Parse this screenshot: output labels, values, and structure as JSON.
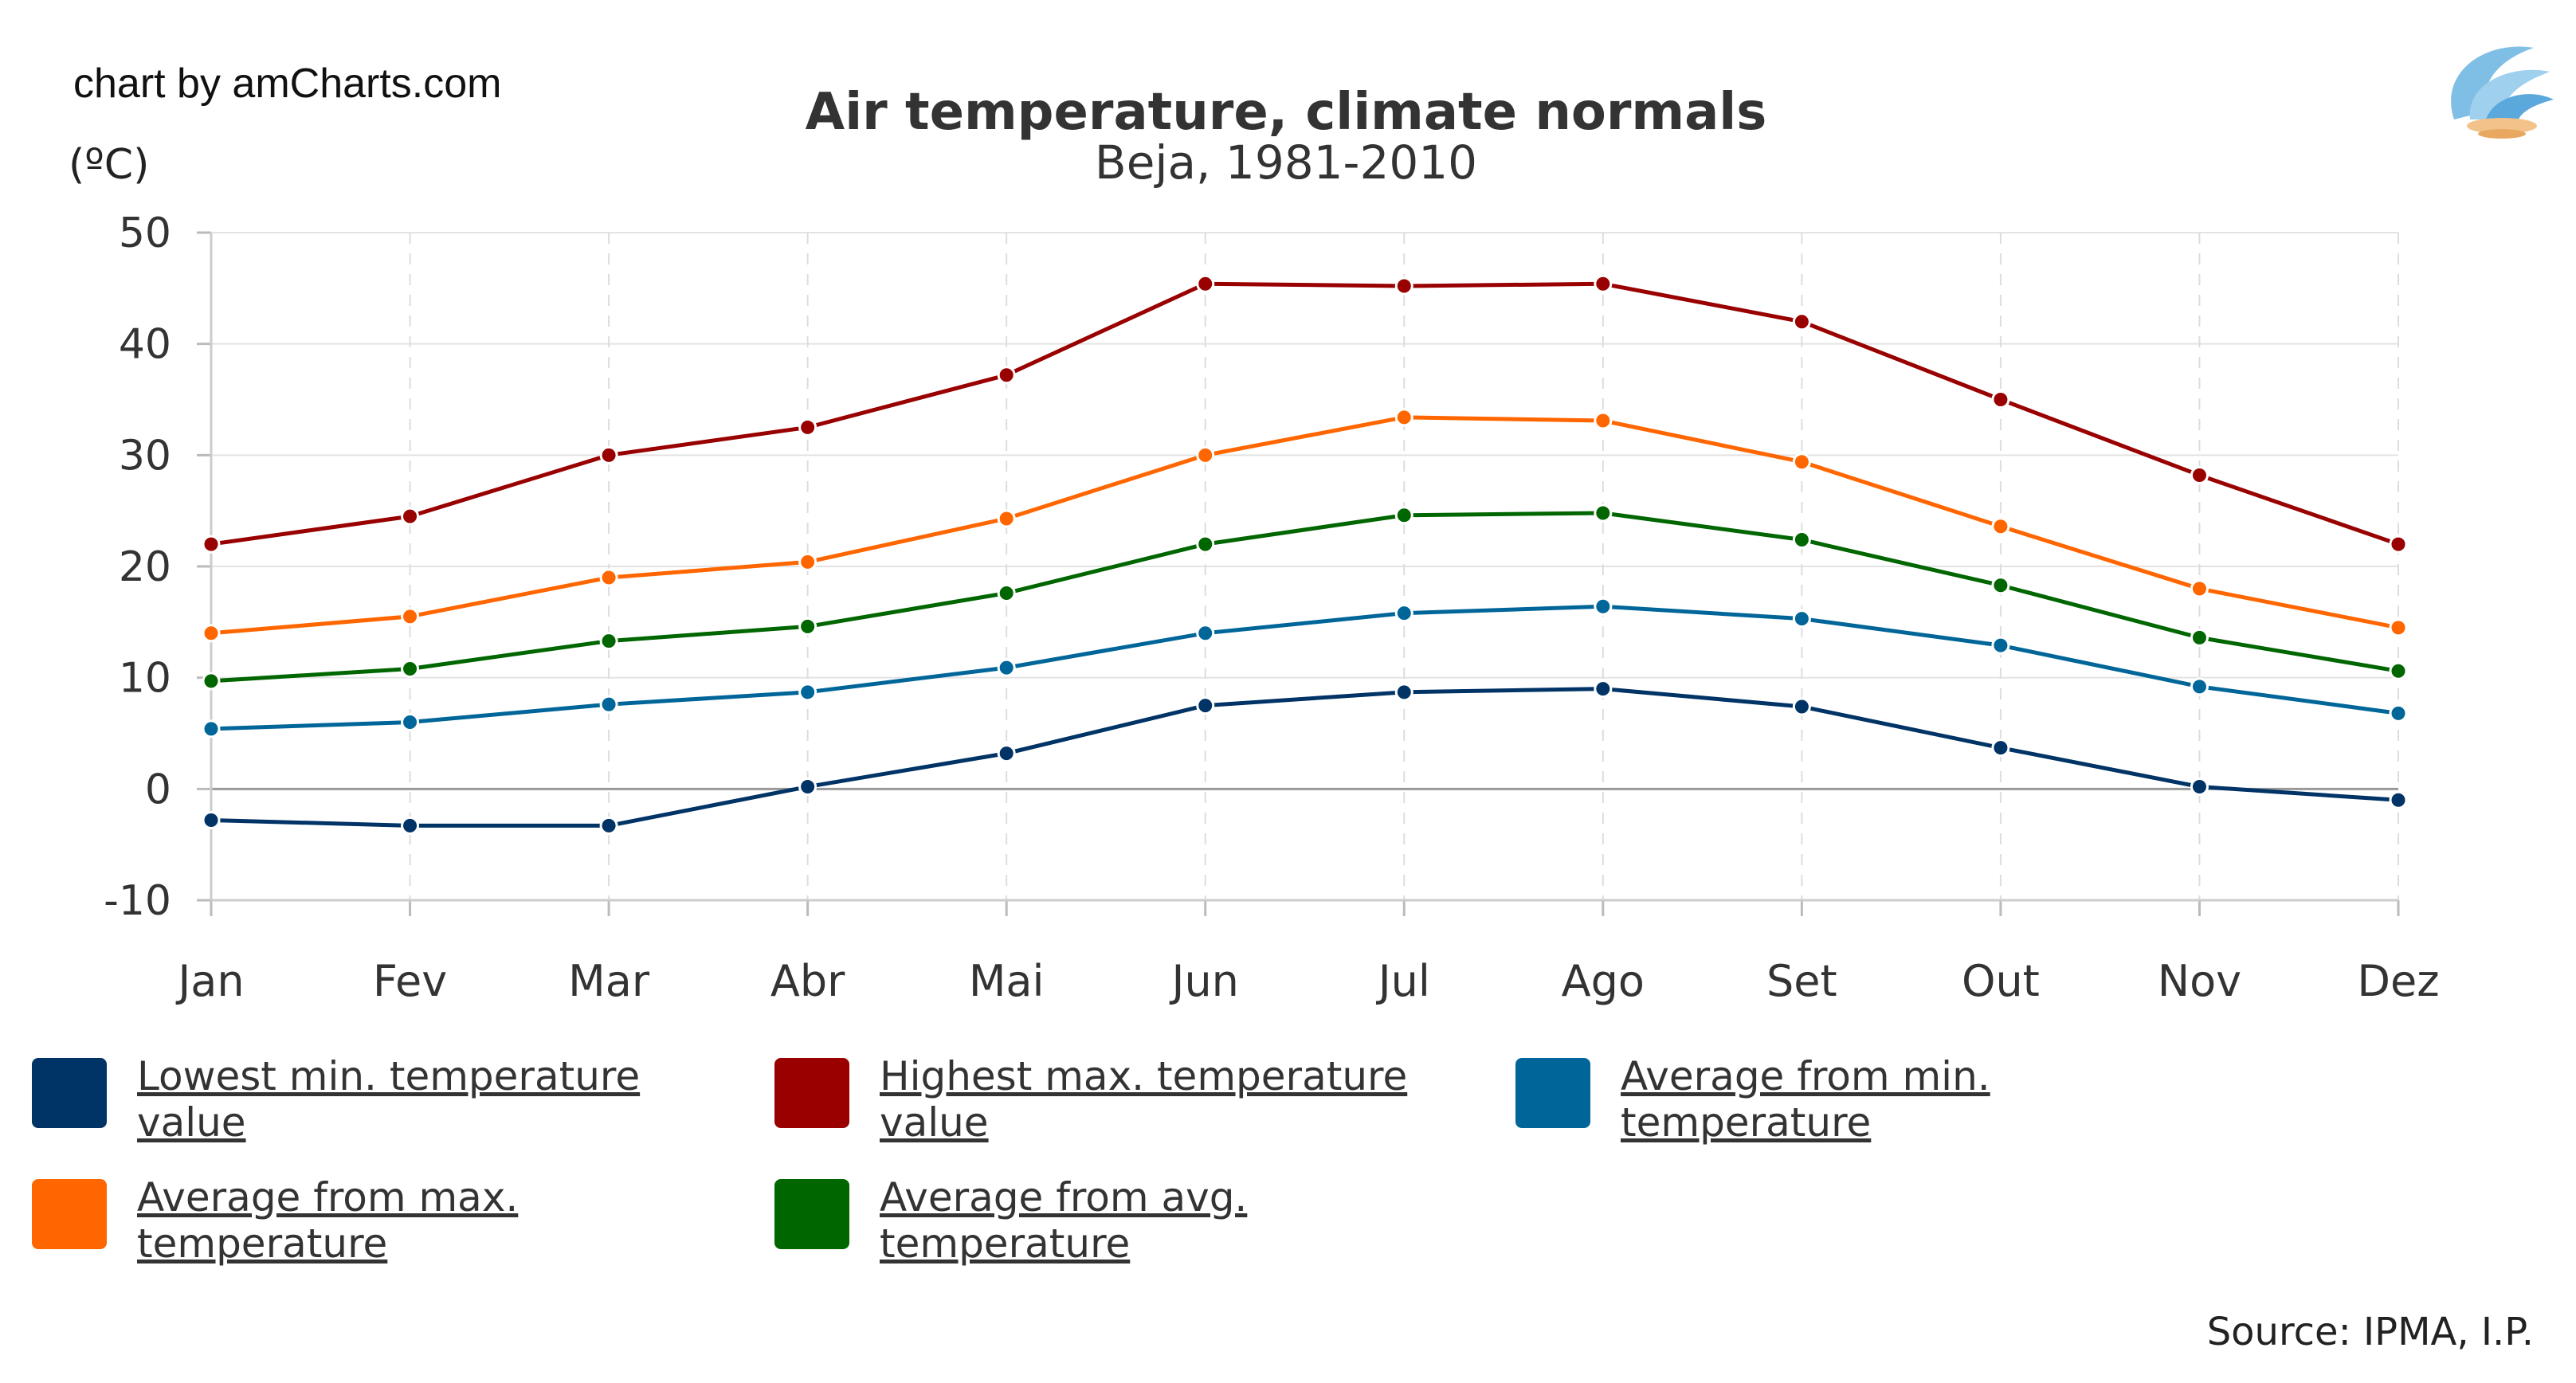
{
  "credit": "chart by amCharts.com",
  "unit_label": "(ºC)",
  "logo_icon": "ipma-wave-logo-icon",
  "source": "Source: IPMA, I.P.",
  "chart_data": {
    "type": "line",
    "title": "Air temperature, climate normals",
    "subtitle": "Beja, 1981-2010",
    "xlabel": "",
    "ylabel": "(ºC)",
    "ylim": [
      -10,
      50
    ],
    "yticks": [
      -10,
      0,
      10,
      20,
      30,
      40,
      50
    ],
    "grid": true,
    "legend_position": "bottom",
    "categories": [
      "Jan",
      "Fev",
      "Mar",
      "Abr",
      "Mai",
      "Jun",
      "Jul",
      "Ago",
      "Set",
      "Out",
      "Nov",
      "Dez"
    ],
    "series": [
      {
        "name": "Lowest min. temperature value",
        "color": "#003366",
        "values": [
          -2.8,
          -3.3,
          -3.3,
          0.2,
          3.2,
          7.5,
          8.7,
          9.0,
          7.4,
          3.7,
          0.2,
          -1.0
        ]
      },
      {
        "name": "Highest max. temperature value",
        "color": "#990000",
        "values": [
          22.0,
          24.5,
          30.0,
          32.5,
          37.2,
          45.4,
          45.2,
          45.4,
          42.0,
          35.0,
          28.2,
          22.0
        ]
      },
      {
        "name": "Average from min. temperature",
        "color": "#006699",
        "values": [
          5.4,
          6.0,
          7.6,
          8.7,
          10.9,
          14.0,
          15.8,
          16.4,
          15.3,
          12.9,
          9.2,
          6.8
        ]
      },
      {
        "name": "Average from max. temperature",
        "color": "#FF6600",
        "values": [
          14.0,
          15.5,
          19.0,
          20.4,
          24.3,
          30.0,
          33.4,
          33.1,
          29.4,
          23.6,
          18.0,
          14.5
        ]
      },
      {
        "name": "Average from avg. temperature",
        "color": "#006600",
        "values": [
          9.7,
          10.8,
          13.3,
          14.6,
          17.6,
          22.0,
          24.6,
          24.8,
          22.4,
          18.3,
          13.6,
          10.6
        ]
      }
    ]
  }
}
